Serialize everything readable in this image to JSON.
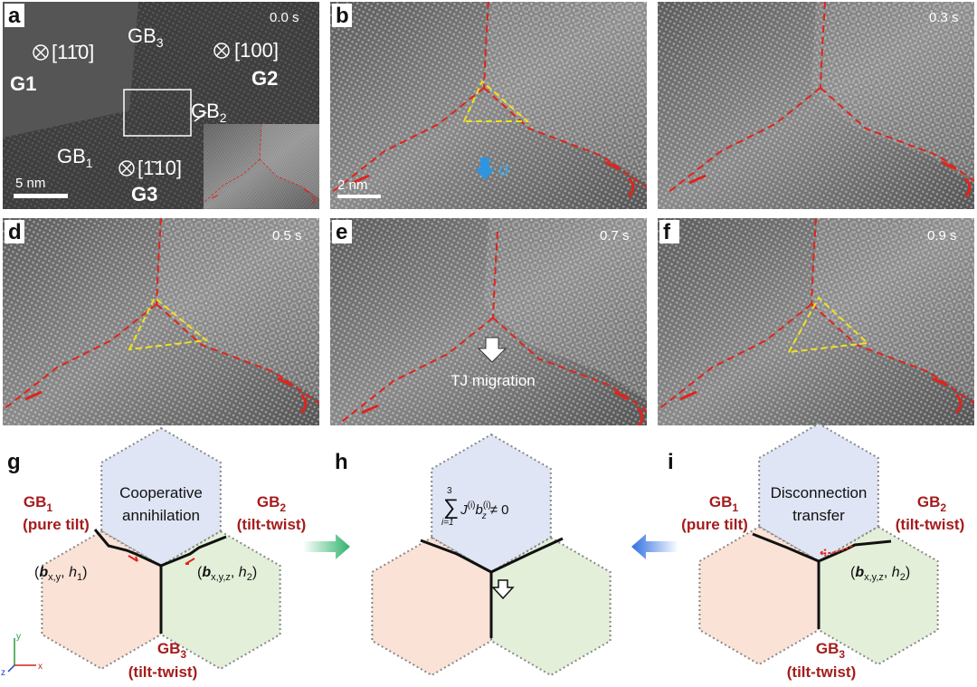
{
  "micrographs": [
    {
      "label": "a",
      "time": "0.0 s",
      "scale_bar": "5 nm",
      "grains": [
        {
          "name": "G1",
          "axis": "[11̄0]"
        },
        {
          "name": "G2",
          "axis": "[100]"
        },
        {
          "name": "G3",
          "axis": "[1̄10]"
        }
      ],
      "boundaries": [
        {
          "base": "GB",
          "sub": "1"
        },
        {
          "base": "GB",
          "sub": "2"
        },
        {
          "base": "GB",
          "sub": "3"
        }
      ]
    },
    {
      "label": "b",
      "scale_bar": "2 nm",
      "stress": "σ"
    },
    {
      "time": "0.3 s"
    },
    {
      "label": "d",
      "time": "0.5 s"
    },
    {
      "label": "e",
      "time": "0.7 s",
      "note": "TJ migration"
    },
    {
      "label": "f",
      "time": "0.9 s"
    }
  ],
  "schematics": [
    {
      "label": "g",
      "gb_left": {
        "base": "GB",
        "sub": "1",
        "type": "(pure tilt)"
      },
      "gb_right": {
        "base": "GB",
        "sub": "2",
        "type": "(tilt-twist)"
      },
      "gb_bottom": {
        "base": "GB",
        "sub": "3",
        "type": "(tilt-twist)"
      },
      "center_text": [
        "Cooperative",
        "annihilation"
      ],
      "burgers_left": [
        "(",
        "b",
        "x,y",
        ", ",
        "h",
        "1",
        ")"
      ],
      "burgers_right": [
        "(",
        "b",
        "x,y,z",
        ", ",
        "h",
        "2",
        ")"
      ],
      "axes": [
        "y",
        "z",
        "x"
      ]
    },
    {
      "label": "h",
      "formula": [
        "∑",
        "3",
        "i=1",
        "J",
        "(i)",
        "b",
        "z",
        "(i)",
        "≠ 0"
      ]
    },
    {
      "label": "i",
      "gb_left": {
        "base": "GB",
        "sub": "1",
        "type": "(pure tilt)"
      },
      "gb_right": {
        "base": "GB",
        "sub": "2",
        "type": "(tilt-twist)"
      },
      "gb_bottom": {
        "base": "GB",
        "sub": "3",
        "type": "(tilt-twist)"
      },
      "center_text": [
        "Disconnection",
        "transfer"
      ],
      "burgers_right": [
        "(",
        "b",
        "x,y,z",
        ", ",
        "h",
        "2",
        ")"
      ]
    }
  ]
}
